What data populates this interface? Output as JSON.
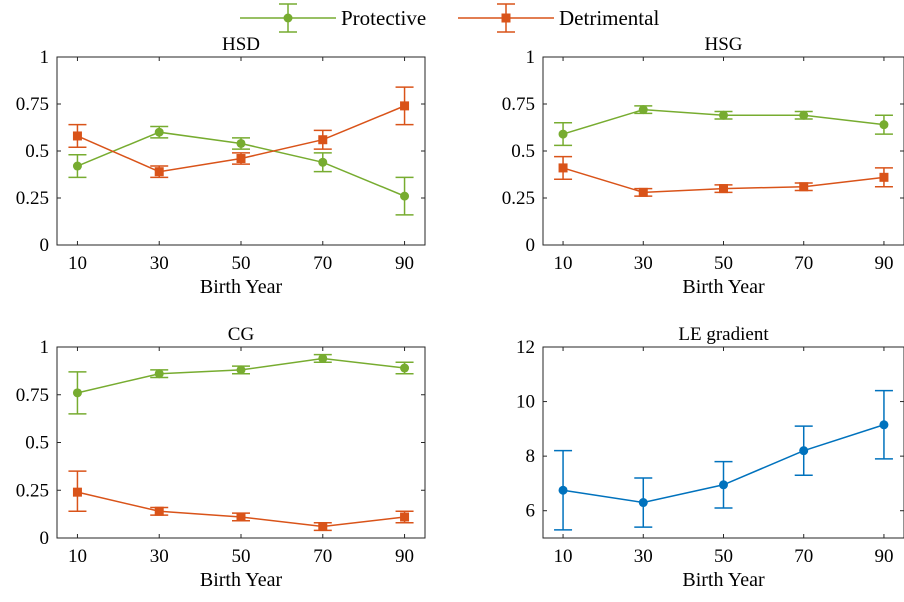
{
  "legend": {
    "items": [
      {
        "label": "Protective",
        "color": "#77AC30",
        "marker": "circle"
      },
      {
        "label": "Detrimental",
        "color": "#D95319",
        "marker": "square"
      }
    ],
    "placement": "top-center"
  },
  "chart_data": [
    {
      "type": "line",
      "title": "HSD",
      "xlabel": "Birth Year",
      "ylabel": "",
      "x": [
        10,
        30,
        50,
        70,
        90
      ],
      "xticks": [
        "10",
        "30",
        "50",
        "70",
        "90"
      ],
      "yticks": [
        "0",
        "0.25",
        "0.5",
        "0.75",
        "1"
      ],
      "xlim": [
        5,
        95
      ],
      "ylim": [
        0,
        1
      ],
      "grid": false,
      "series": [
        {
          "name": "Protective",
          "color": "#77AC30",
          "marker": "circle",
          "values": [
            0.42,
            0.6,
            0.54,
            0.44,
            0.26
          ],
          "err_low": [
            0.36,
            0.57,
            0.51,
            0.39,
            0.16
          ],
          "err_high": [
            0.48,
            0.63,
            0.57,
            0.49,
            0.36
          ]
        },
        {
          "name": "Detrimental",
          "color": "#D95319",
          "marker": "square",
          "values": [
            0.58,
            0.39,
            0.46,
            0.56,
            0.74
          ],
          "err_low": [
            0.52,
            0.36,
            0.43,
            0.51,
            0.64
          ],
          "err_high": [
            0.64,
            0.42,
            0.49,
            0.61,
            0.84
          ]
        }
      ]
    },
    {
      "type": "line",
      "title": "HSG",
      "xlabel": "Birth Year",
      "ylabel": "",
      "x": [
        10,
        30,
        50,
        70,
        90
      ],
      "xticks": [
        "10",
        "30",
        "50",
        "70",
        "90"
      ],
      "yticks": [
        "0",
        "0.25",
        "0.5",
        "0.75",
        "1"
      ],
      "xlim": [
        5,
        95
      ],
      "ylim": [
        0,
        1
      ],
      "grid": false,
      "series": [
        {
          "name": "Protective",
          "color": "#77AC30",
          "marker": "circle",
          "values": [
            0.59,
            0.72,
            0.69,
            0.69,
            0.64
          ],
          "err_low": [
            0.53,
            0.7,
            0.67,
            0.67,
            0.59
          ],
          "err_high": [
            0.65,
            0.74,
            0.71,
            0.71,
            0.69
          ]
        },
        {
          "name": "Detrimental",
          "color": "#D95319",
          "marker": "square",
          "values": [
            0.41,
            0.28,
            0.3,
            0.31,
            0.36
          ],
          "err_low": [
            0.35,
            0.26,
            0.28,
            0.29,
            0.31
          ],
          "err_high": [
            0.47,
            0.3,
            0.32,
            0.33,
            0.41
          ]
        }
      ]
    },
    {
      "type": "line",
      "title": "CG",
      "xlabel": "Birth Year",
      "ylabel": "",
      "x": [
        10,
        30,
        50,
        70,
        90
      ],
      "xticks": [
        "10",
        "30",
        "50",
        "70",
        "90"
      ],
      "yticks": [
        "0",
        "0.25",
        "0.5",
        "0.75",
        "1"
      ],
      "xlim": [
        5,
        95
      ],
      "ylim": [
        0,
        1
      ],
      "grid": false,
      "series": [
        {
          "name": "Protective",
          "color": "#77AC30",
          "marker": "circle",
          "values": [
            0.76,
            0.86,
            0.88,
            0.94,
            0.89
          ],
          "err_low": [
            0.65,
            0.84,
            0.86,
            0.92,
            0.86
          ],
          "err_high": [
            0.87,
            0.88,
            0.9,
            0.96,
            0.92
          ]
        },
        {
          "name": "Detrimental",
          "color": "#D95319",
          "marker": "square",
          "values": [
            0.24,
            0.14,
            0.11,
            0.06,
            0.11
          ],
          "err_low": [
            0.14,
            0.12,
            0.09,
            0.04,
            0.08
          ],
          "err_high": [
            0.35,
            0.16,
            0.13,
            0.08,
            0.14
          ]
        }
      ]
    },
    {
      "type": "line",
      "title": "LE gradient",
      "xlabel": "Birth Year",
      "ylabel": "",
      "x": [
        10,
        30,
        50,
        70,
        90
      ],
      "xticks": [
        "10",
        "30",
        "50",
        "70",
        "90"
      ],
      "yticks": [
        "6",
        "8",
        "10",
        "12"
      ],
      "xlim": [
        5,
        95
      ],
      "ylim": [
        5,
        12
      ],
      "grid": false,
      "series": [
        {
          "color": "#0072BD",
          "marker": "circle",
          "values": [
            6.75,
            6.3,
            6.95,
            8.2,
            9.15
          ],
          "err_low": [
            5.3,
            5.4,
            6.1,
            7.3,
            7.9
          ],
          "err_high": [
            8.2,
            7.2,
            7.8,
            9.1,
            10.4
          ]
        }
      ]
    }
  ]
}
